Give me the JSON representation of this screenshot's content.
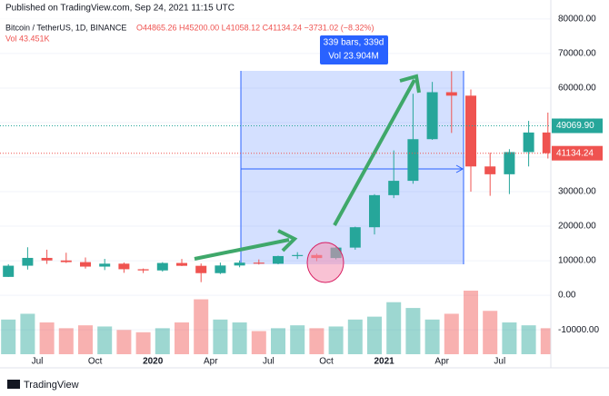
{
  "header": {
    "published": "Published on TradingView.com, Sep 24, 2021 11:15 UTC",
    "symbol": "Bitcoin / TetherUS, 1D, BINANCE",
    "ohlc": "O44865.26 H45200.00 L41058.12 C41134.24 −3731.02 (−8.32%)",
    "volume": "Vol 43.451K"
  },
  "measure": {
    "bars": "339 bars, 339d",
    "volume": "Vol 23.904M"
  },
  "footer": {
    "logo": "TradingView"
  },
  "chart_data": {
    "type": "candlestick",
    "categories": [
      null,
      null,
      "Jul",
      null,
      null,
      "Oct",
      null,
      null,
      "2020",
      null,
      null,
      "Apr",
      null,
      null,
      "Jul",
      null,
      null,
      "Oct",
      null,
      null,
      "2021",
      null,
      null,
      "Apr",
      null,
      null,
      "Jul",
      null,
      null
    ],
    "open": [
      5320,
      8560,
      10820,
      10080,
      9600,
      8300,
      9150,
      7540,
      7195,
      9350,
      8530,
      6410,
      8620,
      9450,
      9140,
      11350,
      11650,
      10780,
      13800,
      19700,
      28990,
      33140,
      45200,
      58800,
      57800,
      37300,
      35040,
      41460,
      47130
    ],
    "high": [
      9000,
      13900,
      13200,
      12320,
      10950,
      10540,
      9500,
      7750,
      9580,
      10500,
      9200,
      9460,
      10070,
      10380,
      11450,
      12470,
      12070,
      14100,
      19860,
      29300,
      41950,
      58350,
      61780,
      64850,
      59600,
      41300,
      42300,
      50500,
      52900
    ],
    "low": [
      5300,
      7450,
      9080,
      9350,
      7710,
      7300,
      6500,
      6430,
      6850,
      8450,
      3800,
      6150,
      8100,
      8900,
      8960,
      10500,
      9880,
      10380,
      13200,
      17600,
      28130,
      32300,
      45000,
      47000,
      30000,
      28800,
      29300,
      37300,
      39600
    ],
    "close": [
      8560,
      10820,
      10080,
      9600,
      8300,
      9150,
      7540,
      7195,
      9350,
      8530,
      6410,
      8620,
      9450,
      9140,
      11350,
      11650,
      10780,
      13800,
      19700,
      28990,
      33140,
      45200,
      58800,
      57800,
      37300,
      35040,
      41460,
      47130,
      41134.24
    ],
    "volume": [
      60,
      70,
      55,
      45,
      50,
      48,
      42,
      38,
      45,
      55,
      95,
      60,
      55,
      40,
      45,
      50,
      45,
      48,
      60,
      65,
      90,
      80,
      60,
      70,
      110,
      75,
      55,
      50,
      45
    ],
    "up_color": "#26a69a",
    "down_color": "#ef5350",
    "ylim": [
      -19700,
      85500
    ],
    "yticks": [
      {
        "value": -10000,
        "label": "-10000.00"
      },
      {
        "value": 0,
        "label": "0.00"
      },
      {
        "value": 10000,
        "label": "10000.00"
      },
      {
        "value": 20000,
        "label": "20000.00"
      },
      {
        "value": 30000,
        "label": "30000.00"
      },
      {
        "value": 40000,
        "label": "40000.00"
      },
      {
        "value": 50000,
        "label": "50000.00"
      },
      {
        "value": 60000,
        "label": "60000.00"
      },
      {
        "value": 70000,
        "label": "70000.00"
      },
      {
        "value": 80000,
        "label": "80000.00"
      }
    ],
    "price_labels": [
      {
        "value": 49069.9,
        "label": "49069.90",
        "color": "#26a69a"
      },
      {
        "value": 41134.24,
        "label": "41134.24",
        "color": "#ef5350"
      }
    ],
    "grid": true
  }
}
